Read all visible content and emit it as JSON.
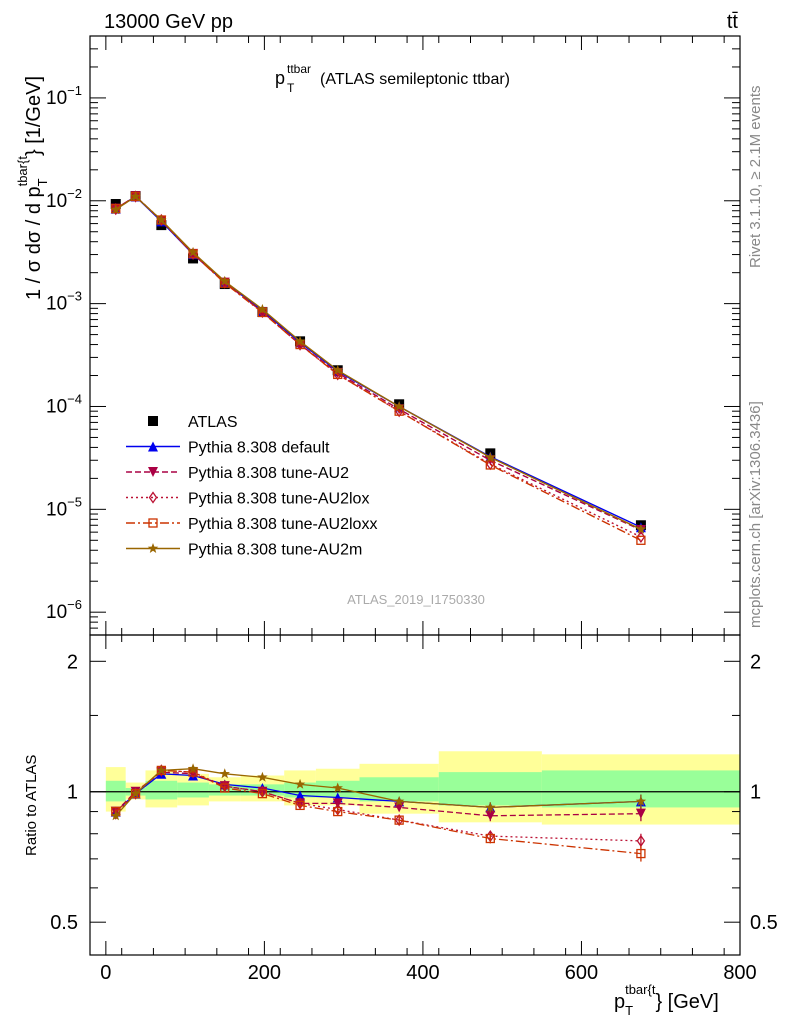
{
  "header": {
    "energy": "13000 GeV pp",
    "process": "tt̄",
    "side_rivet": "Rivet 3.1.10, ≥ 2.1M events",
    "side_mcplots": "mcplots.cern.ch [arXiv:1306.3436]",
    "analysis_id": "ATLAS_2019_I1750330"
  },
  "colors": {
    "ATLAS": "#000000",
    "default": "#0000ee",
    "AU2": "#aa0044",
    "AU2lox": "#bb1133",
    "AU2loxx": "#cc3300",
    "AU2m": "#996600",
    "band_inner": "#99ff99",
    "band_outer": "#ffff99"
  },
  "chart_data": [
    {
      "type": "line",
      "title_main": "p",
      "title_sub": "T",
      "title_sup": "ttbar",
      "title_rest": " (ATLAS semileptonic ttbar)",
      "ylabel": "1 / σ dσ / d p",
      "ylabel_sub": "T",
      "ylabel_sup": "tbar{t",
      "ylabel_end": "} [1/GeV]",
      "yscale": "log",
      "ylim": [
        6e-07,
        0.4
      ],
      "xlim": [
        -20,
        800
      ],
      "yticks": [
        {
          "value": 1e-06,
          "base": "10",
          "exp": "−6"
        },
        {
          "value": 1e-05,
          "base": "10",
          "exp": "−5"
        },
        {
          "value": 0.0001,
          "base": "10",
          "exp": "−4"
        },
        {
          "value": 0.001,
          "base": "10",
          "exp": "−3"
        },
        {
          "value": 0.01,
          "base": "10",
          "exp": "−2"
        },
        {
          "value": 0.1,
          "base": "10",
          "exp": "−1"
        }
      ],
      "legend_position": "bottom-left",
      "x": [
        12.5,
        37.5,
        70,
        110,
        150,
        197.5,
        245,
        292.5,
        370,
        485,
        675
      ],
      "series": [
        {
          "name": "ATLAS",
          "key": "ATLAS",
          "marker": "square",
          "style": "none",
          "values": [
            0.0093,
            0.0111,
            0.0058,
            0.00275,
            0.00155,
            0.00083,
            0.00043,
            0.000225,
            0.000105,
            3.5e-05,
            7e-06
          ]
        },
        {
          "name": "Pythia 8.308 default",
          "key": "default",
          "marker": "triangle-up",
          "style": "solid",
          "values": [
            0.0084,
            0.011,
            0.0063,
            0.00303,
            0.00162,
            0.00085,
            0.00042,
            0.00022,
            0.0001,
            3.25e-05,
            6.7e-06
          ]
        },
        {
          "name": "Pythia 8.308 tune-AU2",
          "key": "AU2",
          "marker": "triangle-down",
          "style": "dashed",
          "values": [
            0.0084,
            0.0111,
            0.0064,
            0.00305,
            0.0016,
            0.00083,
            0.0004,
            0.000212,
            9.4e-05,
            3e-05,
            6.3e-06
          ]
        },
        {
          "name": "Pythia 8.308 tune-AU2lox",
          "key": "AU2lox",
          "marker": "diamond-open",
          "style": "dashdot",
          "values": [
            0.0083,
            0.011,
            0.0065,
            0.00305,
            0.0016,
            0.00083,
            0.0004,
            0.000205,
            9e-05,
            2.75e-05,
            5.4e-06
          ]
        },
        {
          "name": "Pythia 8.308 tune-AU2loxx",
          "key": "AU2loxx",
          "marker": "square-open",
          "style": "longdash",
          "values": [
            0.0084,
            0.011,
            0.0065,
            0.00305,
            0.00158,
            0.00082,
            0.0004,
            0.000205,
            9e-05,
            2.7e-05,
            5e-06
          ]
        },
        {
          "name": "Pythia 8.308 tune-AU2m",
          "key": "AU2m",
          "marker": "star",
          "style": "solid",
          "values": [
            0.0082,
            0.011,
            0.0065,
            0.00315,
            0.00165,
            0.00088,
            0.00043,
            0.000225,
            0.0001,
            3.2e-05,
            6.4e-06
          ]
        }
      ]
    },
    {
      "type": "line",
      "ylabel": "Ratio to ATLAS",
      "xlabel_main": "p",
      "xlabel_sub": "T",
      "xlabel_sup": "tbar{t",
      "xlabel_end": "} [GeV]",
      "yscale": "log",
      "ylim": [
        0.42,
        2.3
      ],
      "xlim": [
        -20,
        800
      ],
      "yticks": [
        0.5,
        1,
        2
      ],
      "ytick_labels": [
        "0.5",
        "1",
        "2"
      ],
      "xticks": [
        0,
        200,
        400,
        600,
        800
      ],
      "xtick_labels": [
        "0",
        "200",
        "400",
        "600",
        "800"
      ],
      "x": [
        12.5,
        37.5,
        70,
        110,
        150,
        197.5,
        245,
        292.5,
        370,
        485,
        675
      ],
      "bands": {
        "edges": [
          0,
          25,
          50,
          90,
          130,
          170,
          225,
          265,
          320,
          420,
          550,
          800
        ],
        "inner_lo": [
          0.95,
          0.98,
          0.96,
          0.97,
          0.98,
          0.98,
          0.97,
          0.97,
          0.95,
          0.93,
          0.92
        ],
        "inner_hi": [
          1.06,
          1.02,
          1.06,
          1.05,
          1.04,
          1.04,
          1.05,
          1.06,
          1.08,
          1.11,
          1.12
        ],
        "outer_lo": [
          0.9,
          0.96,
          0.92,
          0.93,
          0.95,
          0.95,
          0.93,
          0.93,
          0.89,
          0.85,
          0.84
        ],
        "outer_hi": [
          1.14,
          1.05,
          1.12,
          1.1,
          1.08,
          1.09,
          1.12,
          1.13,
          1.16,
          1.24,
          1.22
        ]
      },
      "series": [
        {
          "name": "Pythia 8.308 default",
          "key": "default",
          "marker": "triangle-up",
          "style": "solid",
          "values": [
            0.9,
            0.99,
            1.1,
            1.09,
            1.04,
            1.02,
            0.98,
            0.97,
            0.95,
            0.92,
            0.95
          ],
          "errors": [
            0.01,
            0.01,
            0.01,
            0.01,
            0.01,
            0.01,
            0.01,
            0.015,
            0.015,
            0.025,
            0.035
          ]
        },
        {
          "name": "Pythia 8.308 tune-AU2",
          "key": "AU2",
          "marker": "triangle-down",
          "style": "dashed",
          "values": [
            0.9,
            1.0,
            1.11,
            1.1,
            1.03,
            1.0,
            0.94,
            0.94,
            0.92,
            0.88,
            0.89
          ],
          "errors": [
            0.01,
            0.01,
            0.01,
            0.01,
            0.01,
            0.01,
            0.01,
            0.015,
            0.015,
            0.025,
            0.035
          ]
        },
        {
          "name": "Pythia 8.308 tune-AU2lox",
          "key": "AU2lox",
          "marker": "diamond-open",
          "style": "dashdot",
          "values": [
            0.89,
            0.99,
            1.12,
            1.11,
            1.03,
            1.0,
            0.94,
            0.91,
            0.86,
            0.79,
            0.77
          ],
          "errors": [
            0.01,
            0.01,
            0.01,
            0.01,
            0.01,
            0.01,
            0.01,
            0.015,
            0.015,
            0.02,
            0.03
          ]
        },
        {
          "name": "Pythia 8.308 tune-AU2loxx",
          "key": "AU2loxx",
          "marker": "square-open",
          "style": "longdash",
          "values": [
            0.9,
            0.99,
            1.12,
            1.11,
            1.02,
            0.99,
            0.93,
            0.9,
            0.86,
            0.78,
            0.72
          ],
          "errors": [
            0.01,
            0.01,
            0.01,
            0.01,
            0.01,
            0.01,
            0.01,
            0.015,
            0.015,
            0.02,
            0.03
          ]
        },
        {
          "name": "Pythia 8.308 tune-AU2m",
          "key": "AU2m",
          "marker": "star",
          "style": "solid",
          "values": [
            0.88,
            0.99,
            1.12,
            1.13,
            1.1,
            1.08,
            1.04,
            1.02,
            0.95,
            0.92,
            0.95
          ],
          "errors": [
            0.01,
            0.01,
            0.01,
            0.01,
            0.01,
            0.01,
            0.01,
            0.015,
            0.015,
            0.025,
            0.035
          ]
        }
      ]
    }
  ]
}
